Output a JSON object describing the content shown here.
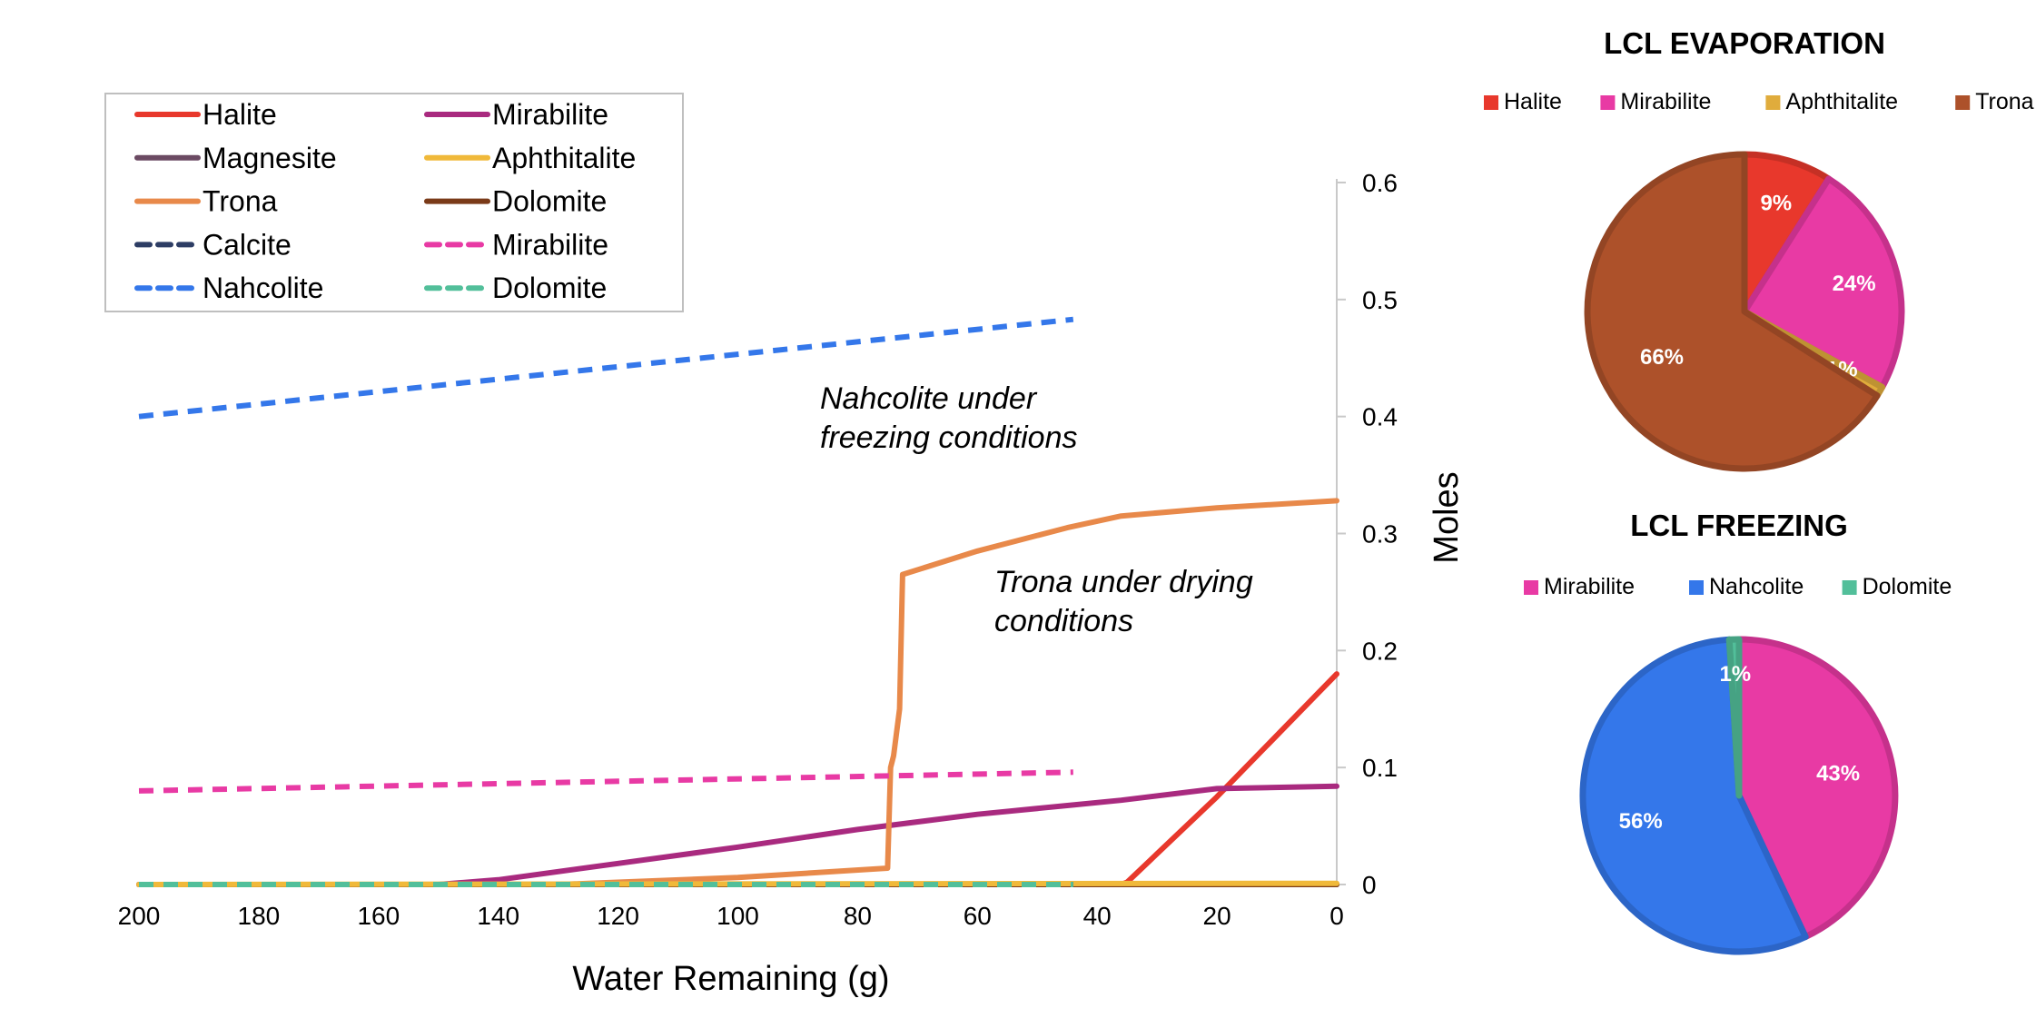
{
  "chart_data": [
    {
      "type": "line",
      "xlabel": "Water Remaining (g)",
      "ylabel": "Moles",
      "xlim": [
        200,
        0
      ],
      "ylim": [
        0,
        0.6
      ],
      "x_ticks": [
        "200",
        "180",
        "160",
        "140",
        "120",
        "100",
        "80",
        "60",
        "40",
        "20",
        "0"
      ],
      "y_ticks": [
        "0",
        "0.1",
        "0.2",
        "0.3",
        "0.4",
        "0.5",
        "0.6"
      ],
      "legend_position": "top-left",
      "series": [
        {
          "name": "Halite",
          "color": "#e8382c",
          "dash": "solid",
          "x": [
            200,
            36,
            35,
            20,
            0
          ],
          "y": [
            0,
            0,
            0.002,
            0.075,
            0.18
          ]
        },
        {
          "name": "Mirabilite",
          "color": "#a92a7f",
          "dash": "solid",
          "x": [
            200,
            150,
            140,
            120,
            100,
            80,
            60,
            36,
            20,
            0
          ],
          "y": [
            0,
            0,
            0.004,
            0.018,
            0.032,
            0.047,
            0.06,
            0.072,
            0.082,
            0.084
          ]
        },
        {
          "name": "Magnesite",
          "color": "#6b4a63",
          "dash": "solid",
          "x": [
            200,
            0
          ],
          "y": [
            0,
            0
          ]
        },
        {
          "name": "Aphthitalite",
          "color": "#f0b93a",
          "dash": "solid",
          "x": [
            200,
            0
          ],
          "y": [
            0,
            0.001
          ]
        },
        {
          "name": "Trona",
          "color": "#e8894a",
          "dash": "solid",
          "x": [
            200,
            130,
            100,
            75,
            74.5,
            74,
            73,
            72.5,
            60,
            45,
            36,
            20,
            0
          ],
          "y": [
            0,
            0,
            0.006,
            0.014,
            0.1,
            0.11,
            0.15,
            0.265,
            0.285,
            0.305,
            0.315,
            0.322,
            0.328
          ]
        },
        {
          "name": "Dolomite",
          "color": "#7a3a18",
          "dash": "solid",
          "x": [
            200,
            0
          ],
          "y": [
            0,
            0
          ]
        },
        {
          "name": "Calcite",
          "color": "#2d3d64",
          "dash": "dash",
          "x": [
            200,
            44
          ],
          "y": [
            0,
            0
          ]
        },
        {
          "name": "Mirabilite",
          "color": "#e83aa4",
          "dash": "dash",
          "x": [
            200,
            44
          ],
          "y": [
            0.08,
            0.096
          ]
        },
        {
          "name": "Nahcolite",
          "color": "#3477ea",
          "dash": "dash",
          "x": [
            200,
            44
          ],
          "y": [
            0.4,
            0.483
          ]
        },
        {
          "name": "Dolomite",
          "color": "#52bf9a",
          "dash": "dash",
          "x": [
            200,
            44
          ],
          "y": [
            0,
            0
          ]
        }
      ],
      "annotations": [
        {
          "lines": [
            "Nahcolite under",
            "freezing conditions"
          ]
        },
        {
          "lines": [
            "Trona under drying",
            "conditions"
          ]
        }
      ]
    },
    {
      "type": "pie",
      "title": "LCL EVAPORATION",
      "legend_position": "top",
      "slices": [
        {
          "name": "Halite",
          "value": 9,
          "label": "9%",
          "color": "#e8382c"
        },
        {
          "name": "Mirabilite",
          "value": 24,
          "label": "24%",
          "color": "#e83aa4"
        },
        {
          "name": "Aphthitalite",
          "value": 1,
          "label": "1%",
          "color": "#e0ac3c"
        },
        {
          "name": "Trona",
          "value": 66,
          "label": "66%",
          "color": "#ad512a"
        }
      ]
    },
    {
      "type": "pie",
      "title": "LCL FREEZING",
      "legend_position": "top",
      "slices": [
        {
          "name": "Mirabilite",
          "value": 43,
          "label": "43%",
          "color": "#e83aa4"
        },
        {
          "name": "Nahcolite",
          "value": 56,
          "label": "56%",
          "color": "#3477ea"
        },
        {
          "name": "Dolomite",
          "value": 1,
          "label": "1%",
          "color": "#52bf9a"
        }
      ]
    }
  ]
}
